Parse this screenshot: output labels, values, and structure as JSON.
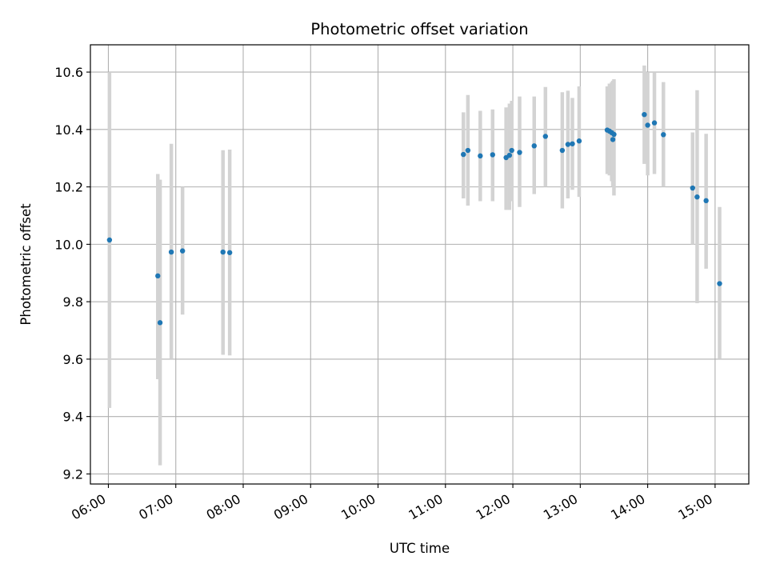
{
  "chart_data": {
    "type": "scatter",
    "title": "Photometric offset variation",
    "xlabel": "UTC time",
    "ylabel": "Photometric offset",
    "x_ticks": [
      "06:00",
      "07:00",
      "08:00",
      "09:00",
      "10:00",
      "11:00",
      "12:00",
      "13:00",
      "14:00",
      "15:00"
    ],
    "y_ticks": [
      "9.2",
      "9.4",
      "9.6",
      "9.8",
      "10.0",
      "10.2",
      "10.4",
      "10.6"
    ],
    "xlim": [
      "05:44",
      "15:30"
    ],
    "ylim": [
      9.165,
      10.695
    ],
    "grid": true,
    "colors": {
      "points": "#1f77b4",
      "error_bars": "#d3d3d3",
      "grid": "#b0b0b0"
    },
    "points": [
      {
        "x": "06:01",
        "y": 10.015,
        "lo": 9.43,
        "hi": 10.6
      },
      {
        "x": "06:44",
        "y": 9.89,
        "lo": 9.53,
        "hi": 10.245
      },
      {
        "x": "06:46",
        "y": 9.727,
        "lo": 9.23,
        "hi": 10.225
      },
      {
        "x": "06:56",
        "y": 9.973,
        "lo": 9.6,
        "hi": 10.35
      },
      {
        "x": "07:06",
        "y": 9.977,
        "lo": 9.755,
        "hi": 10.2
      },
      {
        "x": "07:42",
        "y": 9.973,
        "lo": 9.615,
        "hi": 10.328
      },
      {
        "x": "07:48",
        "y": 9.971,
        "lo": 9.613,
        "hi": 10.33
      },
      {
        "x": "11:16",
        "y": 10.313,
        "lo": 10.16,
        "hi": 10.46
      },
      {
        "x": "11:20",
        "y": 10.327,
        "lo": 10.135,
        "hi": 10.52
      },
      {
        "x": "11:31",
        "y": 10.308,
        "lo": 10.15,
        "hi": 10.465
      },
      {
        "x": "11:42",
        "y": 10.312,
        "lo": 10.15,
        "hi": 10.47
      },
      {
        "x": "11:54",
        "y": 10.302,
        "lo": 10.12,
        "hi": 10.477
      },
      {
        "x": "11:57",
        "y": 10.31,
        "lo": 10.12,
        "hi": 10.49
      },
      {
        "x": "11:59",
        "y": 10.327,
        "lo": 10.15,
        "hi": 10.5
      },
      {
        "x": "12:06",
        "y": 10.32,
        "lo": 10.13,
        "hi": 10.515
      },
      {
        "x": "12:19",
        "y": 10.343,
        "lo": 10.175,
        "hi": 10.515
      },
      {
        "x": "12:29",
        "y": 10.376,
        "lo": 10.2,
        "hi": 10.548
      },
      {
        "x": "12:44",
        "y": 10.327,
        "lo": 10.125,
        "hi": 10.53
      },
      {
        "x": "12:49",
        "y": 10.348,
        "lo": 10.16,
        "hi": 10.535
      },
      {
        "x": "12:53",
        "y": 10.35,
        "lo": 10.19,
        "hi": 10.51
      },
      {
        "x": "12:59",
        "y": 10.36,
        "lo": 10.165,
        "hi": 10.55
      },
      {
        "x": "13:24",
        "y": 10.398,
        "lo": 10.245,
        "hi": 10.55
      },
      {
        "x": "13:26",
        "y": 10.394,
        "lo": 10.24,
        "hi": 10.56
      },
      {
        "x": "13:28",
        "y": 10.389,
        "lo": 10.22,
        "hi": 10.565
      },
      {
        "x": "13:30",
        "y": 10.383,
        "lo": 10.17,
        "hi": 10.575
      },
      {
        "x": "13:29",
        "y": 10.365,
        "lo": 10.2,
        "hi": 10.57
      },
      {
        "x": "13:57",
        "y": 10.452,
        "lo": 10.28,
        "hi": 10.623
      },
      {
        "x": "14:00",
        "y": 10.415,
        "lo": 10.24,
        "hi": 10.6
      },
      {
        "x": "14:06",
        "y": 10.423,
        "lo": 10.245,
        "hi": 10.6
      },
      {
        "x": "14:14",
        "y": 10.382,
        "lo": 10.2,
        "hi": 10.565
      },
      {
        "x": "14:40",
        "y": 10.196,
        "lo": 10.0,
        "hi": 10.39
      },
      {
        "x": "14:44",
        "y": 10.165,
        "lo": 9.795,
        "hi": 10.537
      },
      {
        "x": "14:52",
        "y": 10.152,
        "lo": 9.915,
        "hi": 10.385
      },
      {
        "x": "15:04",
        "y": 9.863,
        "lo": 9.6,
        "hi": 10.13
      }
    ]
  }
}
